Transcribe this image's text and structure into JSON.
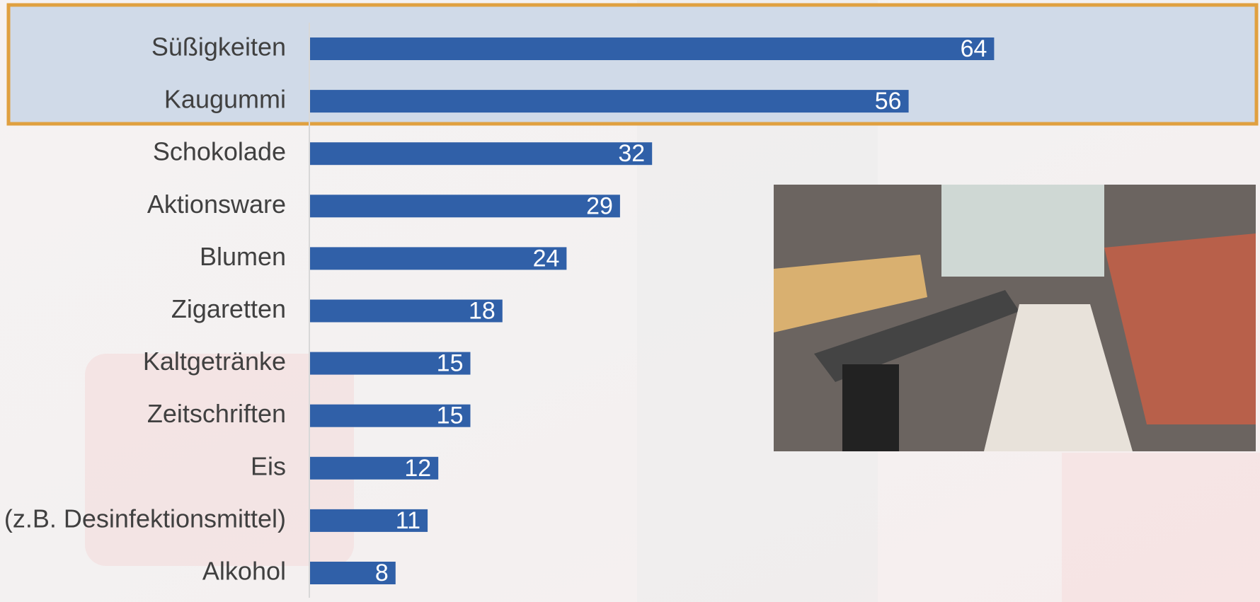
{
  "chart_data": {
    "type": "barh",
    "categories": [
      "Süßigkeiten",
      "Kaugummi",
      "Schokolade",
      "Aktionsware",
      "Blumen",
      "Zigaretten",
      "Kaltgetränke",
      "Zeitschriften",
      "Eis",
      "(z.B. Desinfektionsmittel)",
      "Alkohol"
    ],
    "values": [
      64,
      56,
      32,
      29,
      24,
      18,
      15,
      15,
      12,
      11,
      8
    ],
    "color": "#3060a8"
  }
}
